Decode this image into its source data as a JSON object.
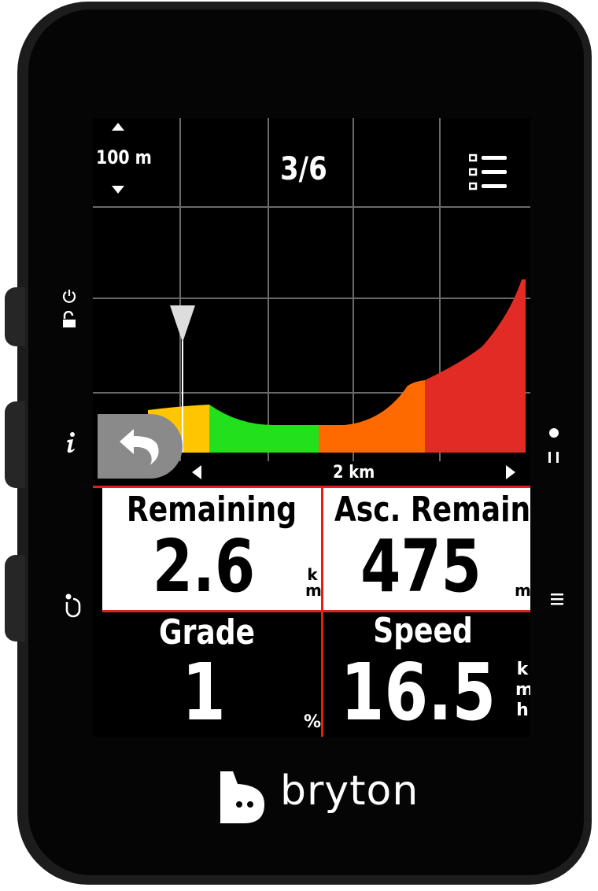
{
  "map": {
    "zoom_scale": "100 m",
    "page_indicator": "3/6",
    "distance_scale": "2 km",
    "profile_colors": [
      "#ffc600",
      "#22e01c",
      "#ff6a00",
      "#e32b26"
    ]
  },
  "fields": [
    {
      "label": "Remaining",
      "value": "2.6",
      "unit": [
        "k",
        "m"
      ]
    },
    {
      "label": "Asc. Remain.",
      "value": "475",
      "unit": [
        "m"
      ]
    },
    {
      "label": "Grade",
      "value": "1",
      "unit": [
        "%"
      ]
    },
    {
      "label": "Speed",
      "value": "16.5",
      "unit": [
        "k",
        "m",
        "h"
      ]
    }
  ],
  "brand": "bryton",
  "colors": {
    "field_divider": "#e0201b",
    "back_button": "#8a8a8a"
  }
}
